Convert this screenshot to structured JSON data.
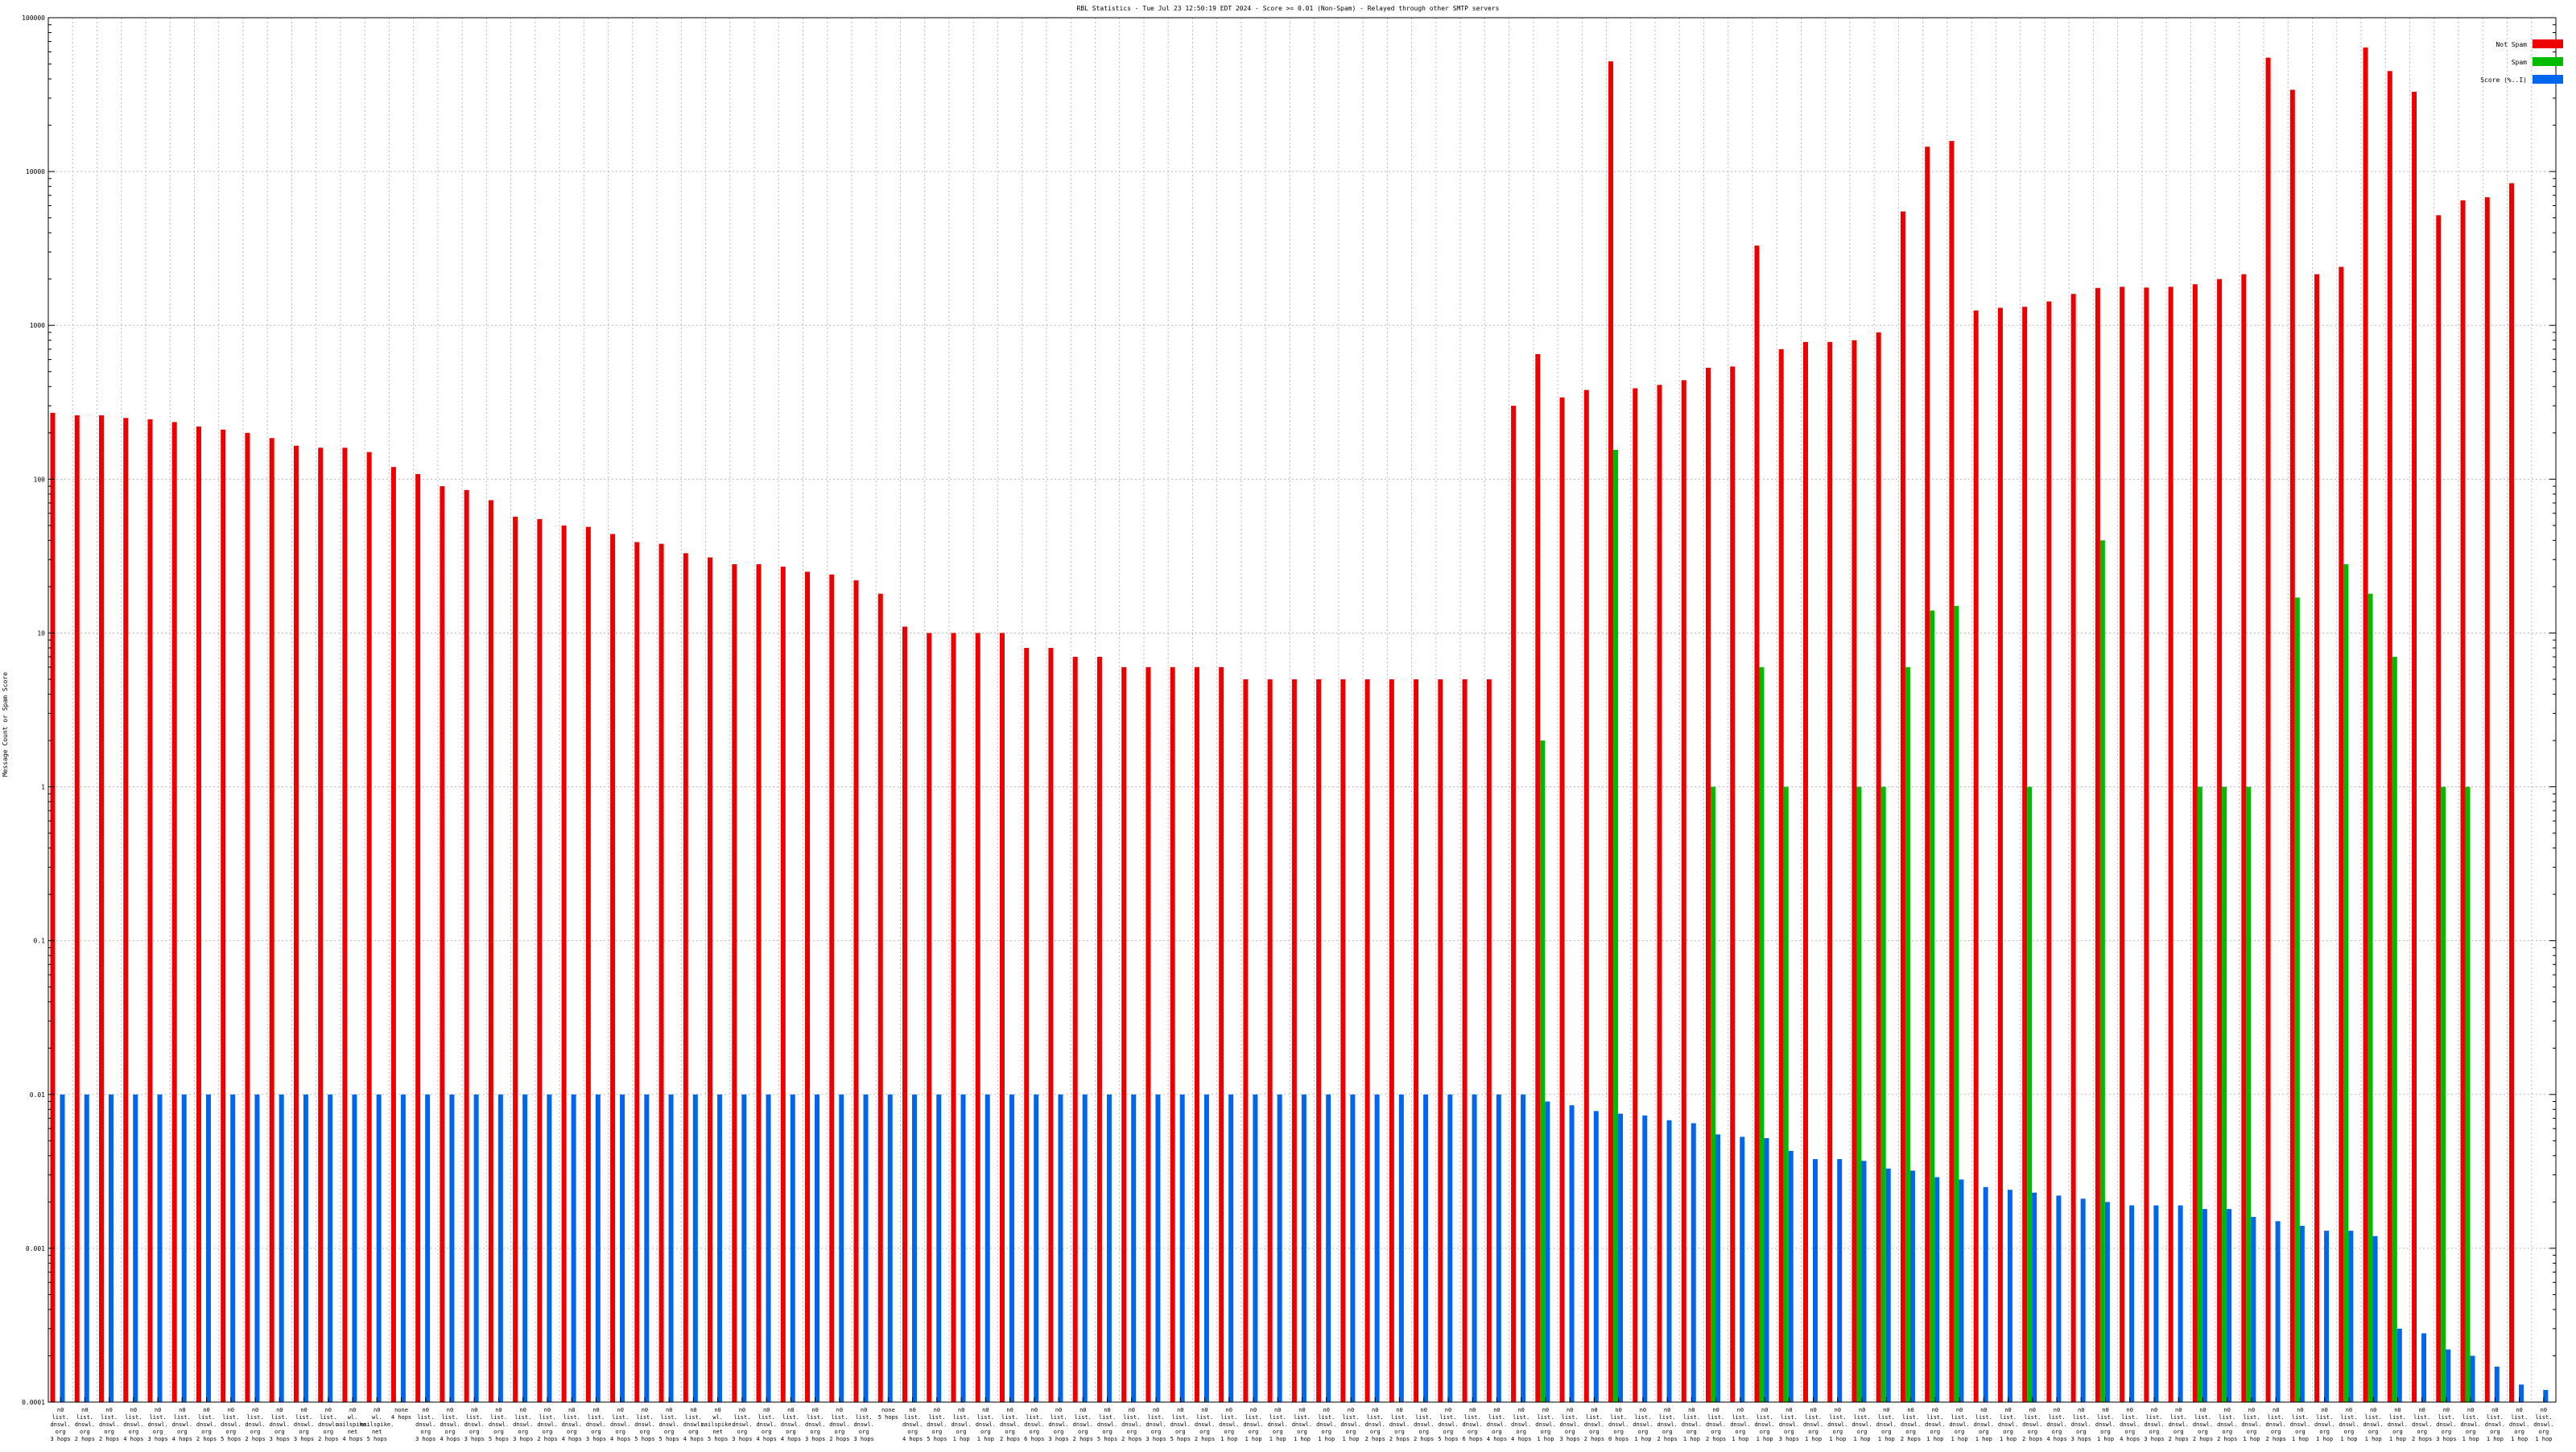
{
  "chart_data": {
    "type": "bar",
    "title": "RBL Statistics - Tue Jul 23 12:50:19 EDT 2024 - Score >= 0.01 (Non-Spam) - Relayed through other SMTP servers",
    "ylabel": "Message Count or Spam Score",
    "xlabel": "",
    "yscale": "log",
    "ylim": [
      0.0001,
      100000
    ],
    "yticks": [
      {
        "value": 0.0001,
        "label": "0.0001"
      },
      {
        "value": 0.001,
        "label": "0.001"
      },
      {
        "value": 0.01,
        "label": "0.01"
      },
      {
        "value": 0.1,
        "label": "0.1"
      },
      {
        "value": 1,
        "label": "1"
      },
      {
        "value": 10,
        "label": "10"
      },
      {
        "value": 100,
        "label": "100"
      },
      {
        "value": 1000,
        "label": "1000"
      },
      {
        "value": 10000,
        "label": "10000"
      },
      {
        "value": 100000,
        "label": "100000"
      }
    ],
    "grid": true,
    "legend_position": "top-right",
    "series": [
      {
        "name": "Not Spam",
        "color": "#ee0000",
        "values": [
          270,
          260,
          260,
          250,
          245,
          235,
          220,
          210,
          200,
          185,
          165,
          160,
          160,
          150,
          120,
          108,
          90,
          85,
          73,
          57,
          55,
          50,
          49,
          44,
          39,
          38,
          33,
          31,
          28,
          28,
          27,
          25,
          24,
          22,
          18,
          11,
          10,
          10,
          10,
          10,
          8,
          8,
          7,
          7,
          6,
          6,
          6,
          6,
          6,
          5,
          5,
          5,
          5,
          5,
          5,
          5,
          5,
          5,
          5,
          5,
          300,
          650,
          340,
          380,
          52000,
          390,
          410,
          440,
          530,
          540,
          3300,
          700,
          780,
          780,
          800,
          900,
          5500,
          14500,
          15800,
          1250,
          1300,
          1320,
          1430,
          1600,
          1750,
          1780,
          1760,
          1780,
          1850,
          2000,
          2150,
          55000,
          34000,
          2150,
          2400,
          64000,
          45000,
          33000,
          5200,
          6500,
          6800,
          8400,
          0.0001
        ]
      },
      {
        "name": "Spam",
        "color": "#00bb00",
        "values": [
          0,
          0,
          0,
          0,
          0,
          0,
          0,
          0,
          0,
          0,
          0,
          0,
          0,
          0,
          0,
          0,
          0,
          0,
          0,
          0,
          0,
          0,
          0,
          0,
          0,
          0,
          0,
          0,
          0,
          0,
          0,
          0,
          0,
          0,
          0,
          0,
          0,
          0,
          0,
          0,
          0,
          0,
          0,
          0,
          0,
          0,
          0,
          0,
          0,
          0,
          0,
          0,
          0,
          0,
          0,
          0,
          0,
          0,
          0,
          0,
          0,
          2,
          0,
          0,
          155,
          0,
          0,
          0,
          1,
          0,
          6,
          1,
          0,
          0,
          1,
          1,
          6,
          14,
          15,
          0,
          0,
          1,
          0,
          0,
          40,
          0,
          0,
          0,
          1,
          1,
          1,
          0,
          17,
          0,
          28,
          18,
          7,
          0,
          1,
          1,
          0,
          0,
          0
        ]
      },
      {
        "name": "Score (%..I)",
        "color": "#0066ee",
        "values": [
          0.01,
          0.01,
          0.01,
          0.01,
          0.01,
          0.01,
          0.01,
          0.01,
          0.01,
          0.01,
          0.01,
          0.01,
          0.01,
          0.01,
          0.01,
          0.01,
          0.01,
          0.01,
          0.01,
          0.01,
          0.01,
          0.01,
          0.01,
          0.01,
          0.01,
          0.01,
          0.01,
          0.01,
          0.01,
          0.01,
          0.01,
          0.01,
          0.01,
          0.01,
          0.01,
          0.01,
          0.01,
          0.01,
          0.01,
          0.01,
          0.01,
          0.01,
          0.01,
          0.01,
          0.01,
          0.01,
          0.01,
          0.01,
          0.01,
          0.01,
          0.01,
          0.01,
          0.01,
          0.01,
          0.01,
          0.01,
          0.01,
          0.01,
          0.01,
          0.01,
          0.01,
          0.009,
          0.0085,
          0.0078,
          0.0075,
          0.0073,
          0.0068,
          0.0065,
          0.0055,
          0.0053,
          0.0052,
          0.0043,
          0.0038,
          0.0038,
          0.0037,
          0.0033,
          0.0032,
          0.0029,
          0.0028,
          0.0025,
          0.0024,
          0.0023,
          0.0022,
          0.0021,
          0.002,
          0.0019,
          0.0019,
          0.0019,
          0.0018,
          0.0018,
          0.0016,
          0.0015,
          0.0014,
          0.0013,
          0.0013,
          0.0012,
          0.0003,
          0.00028,
          0.00022,
          0.0002,
          0.00017,
          0.00013,
          0.00012
        ]
      }
    ],
    "categories": [
      "n0\nlist.\ndnswl.\norg\n3 hops",
      "n0\nlist.\ndnswl.\norg\n2 hops",
      "n0\nlist.\ndnswl.\norg\n2 hops",
      "n0\nlist.\ndnswl.\norg\n4 hops",
      "n0\nlist.\ndnswl.\norg\n3 hops",
      "n0\nlist.\ndnswl.\norg\n4 hops",
      "n0\nlist.\ndnswl.\norg\n2 hops",
      "n0\nlist.\ndnswl.\norg\n5 hops",
      "n0\nlist.\ndnswl.\norg\n2 hops",
      "n0\nlist.\ndnswl.\norg\n3 hops",
      "n0\nlist.\ndnswl.\norg\n3 hops",
      "n0\nlist.\ndnswl.\norg\n2 hops",
      "n0\nwl.\nmailspike.\nnet\n4 hops",
      "n0\nwl.\nmailspike.\nnet\n5 hops",
      "none\n4 hops",
      "n0\nlist.\ndnswl.\norg\n3 hops",
      "n0\nlist.\ndnswl.\norg\n4 hops",
      "n0\nlist.\ndnswl.\norg\n3 hops",
      "n0\nlist.\ndnswl.\norg\n5 hops",
      "n0\nlist.\ndnswl.\norg\n3 hops",
      "n0\nlist.\ndnswl.\norg\n2 hops",
      "n0\nlist.\ndnswl.\norg\n4 hops",
      "n0\nlist.\ndnswl.\norg\n3 hops",
      "n0\nlist.\ndnswl.\norg\n4 hops",
      "n0\nlist.\ndnswl.\norg\n5 hops",
      "n0\nlist.\ndnswl.\norg\n5 hops",
      "n0\nlist.\ndnswl.\norg\n4 hops",
      "n0\nwl.\nmailspike.\nnet\n5 hops",
      "n0\nlist.\ndnswl.\norg\n3 hops",
      "n0\nlist.\ndnswl.\norg\n4 hops",
      "n0\nlist.\ndnswl.\norg\n4 hops",
      "n0\nlist.\ndnswl.\norg\n3 hops",
      "n0\nlist.\ndnswl.\norg\n2 hops",
      "n0\nlist.\ndnswl.\norg\n3 hops",
      "none\n5 hops",
      "n0\nlist.\ndnswl.\norg\n4 hops",
      "n0\nlist.\ndnswl.\norg\n5 hops",
      "n0\nlist.\ndnswl.\norg\n1 hop",
      "n0\nlist.\ndnswl.\norg\n1 hop",
      "n0\nlist.\ndnswl.\norg\n2 hops",
      "n0\nlist.\ndnswl.\norg\n6 hops",
      "n0\nlist.\ndnswl.\norg\n3 hops",
      "n0\nlist.\ndnswl.\norg\n2 hops",
      "n0\nlist.\ndnswl.\norg\n5 hops",
      "n0\nlist.\ndnswl.\norg\n2 hops",
      "n0\nlist.\ndnswl.\norg\n3 hops",
      "n0\nlist.\ndnswl.\norg\n5 hops",
      "n0\nlist.\ndnswl.\norg\n2 hops",
      "n0\nlist.\ndnswl.\norg\n1 hop",
      "n0\nlist.\ndnswl.\norg\n1 hop",
      "n0\nlist.\ndnswl.\norg\n1 hop",
      "n0\nlist.\ndnswl.\norg\n1 hop",
      "n0\nlist.\ndnswl.\norg\n1 hop",
      "n0\nlist.\ndnswl.\norg\n1 hop",
      "n0\nlist.\ndnswl.\norg\n2 hops",
      "n0\nlist.\ndnswl.\norg\n2 hops",
      "n0\nlist.\ndnswl.\norg\n2 hops",
      "n0\nlist.\ndnswl.\norg\n5 hops",
      "n0\nlist.\ndnswl.\norg\n6 hops",
      "n0\nlist.\ndnswl.\norg\n4 hops",
      "n0\nlist.\ndnswl.\norg\n4 hops",
      "n0\nlist.\ndnswl.\norg\n1 hop",
      "n0\nlist.\ndnswl.\norg\n3 hops",
      "n0\nlist.\ndnswl.\norg\n2 hops",
      "n0\nlist.\ndnswl.\norg\n0 hops",
      "n0\nlist.\ndnswl.\norg\n1 hop",
      "n0\nlist.\ndnswl.\norg\n2 hops",
      "n0\nlist.\ndnswl.\norg\n1 hop",
      "n0\nlist.\ndnswl.\norg\n2 hops",
      "n0\nlist.\ndnswl.\norg\n1 hop",
      "n0\nlist.\ndnswl.\norg\n1 hop",
      "n0\nlist.\ndnswl.\norg\n3 hops",
      "n0\nlist.\ndnswl.\norg\n1 hop",
      "n0\nlist.\ndnswl.\norg\n1 hop",
      "n0\nlist.\ndnswl.\norg\n1 hop",
      "n0\nlist.\ndnswl.\norg\n1 hop",
      "n0\nlist.\ndnswl.\norg\n2 hops",
      "n0\nlist.\ndnswl.\norg\n1 hop",
      "n0\nlist.\ndnswl.\norg\n1 hop",
      "n0\nlist.\ndnswl.\norg\n1 hop",
      "n0\nlist.\ndnswl.\norg\n1 hop",
      "n0\nlist.\ndnswl.\norg\n2 hops",
      "n0\nlist.\ndnswl.\norg\n4 hops",
      "n0\nlist.\ndnswl.\norg\n3 hops",
      "n0\nlist.\ndnswl.\norg\n1 hop",
      "n0\nlist.\ndnswl.\norg\n4 hops",
      "n0\nlist.\ndnswl.\norg\n3 hops",
      "n0\nlist.\ndnswl.\norg\n2 hops",
      "n0\nlist.\ndnswl.\norg\n2 hops",
      "n0\nlist.\ndnswl.\norg\n2 hops",
      "n0\nlist.\ndnswl.\norg\n1 hop",
      "n0\nlist.\ndnswl.\norg\n2 hops",
      "n0\nlist.\ndnswl.\norg\n1 hop",
      "n0\nlist.\ndnswl.\norg\n1 hop",
      "n0\nlist.\ndnswl.\norg\n1 hop",
      "n0\nlist.\ndnswl.\norg\n1 hop",
      "n0\nlist.\ndnswl.\norg\n1 hop",
      "n0\nlist.\ndnswl.\norg\n2 hops",
      "n0\nlist.\ndnswl.\norg\n3 hops",
      "n0\nlist.\ndnswl.\norg\n1 hop",
      "n0\nlist.\ndnswl.\norg\n1 hop",
      "n0\nlist.\ndnswl.\norg\n1 hop",
      "n0\nlist.\ndnswl.\norg\n1 hop"
    ]
  }
}
